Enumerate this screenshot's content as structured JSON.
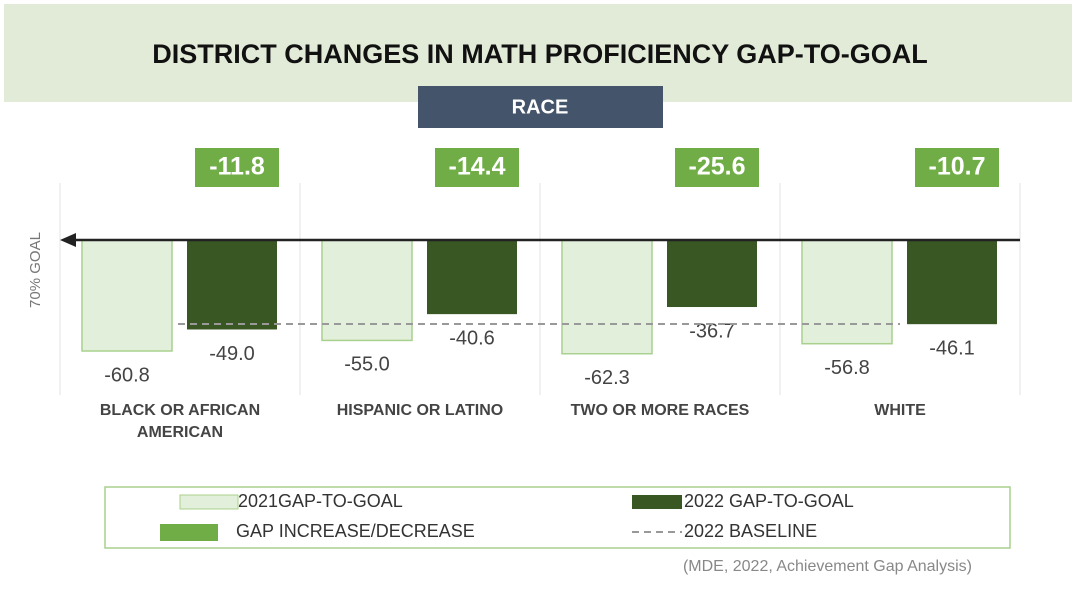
{
  "chart_data": {
    "type": "bar",
    "title": "DISTRICT CHANGES IN MATH PROFICIENCY GAP-TO-GOAL",
    "subtitle": "RACE",
    "y_label": "70% GOAL",
    "categories": [
      "BLACK OR AFRICAN AMERICAN",
      "HISPANIC OR LATINO",
      "TWO OR MORE RACES",
      "WHITE"
    ],
    "series": [
      {
        "name": "2021GAP-TO-GOAL",
        "color": "#e2efda",
        "values": [
          -60.8,
          -55.0,
          -62.3,
          -56.8
        ],
        "value_labels": [
          "-60.8",
          "-55.0",
          "-62.3",
          "-56.8"
        ]
      },
      {
        "name": "2022 GAP-TO-GOAL",
        "color": "#385723",
        "values": [
          -49.0,
          -40.6,
          -36.7,
          -46.1
        ],
        "value_labels": [
          "-49.0",
          "-40.6",
          "-36.7",
          "-46.1"
        ]
      }
    ],
    "change": {
      "name": "GAP INCREASE/DECREASE",
      "color": "#70ad47",
      "values": [
        -11.8,
        -14.4,
        -25.6,
        -10.7
      ]
    },
    "baseline": {
      "name": "2022 BASELINE",
      "value": -46
    },
    "ylim": [
      -70,
      0
    ],
    "source": "(MDE, 2022, Achievement Gap Analysis)"
  }
}
